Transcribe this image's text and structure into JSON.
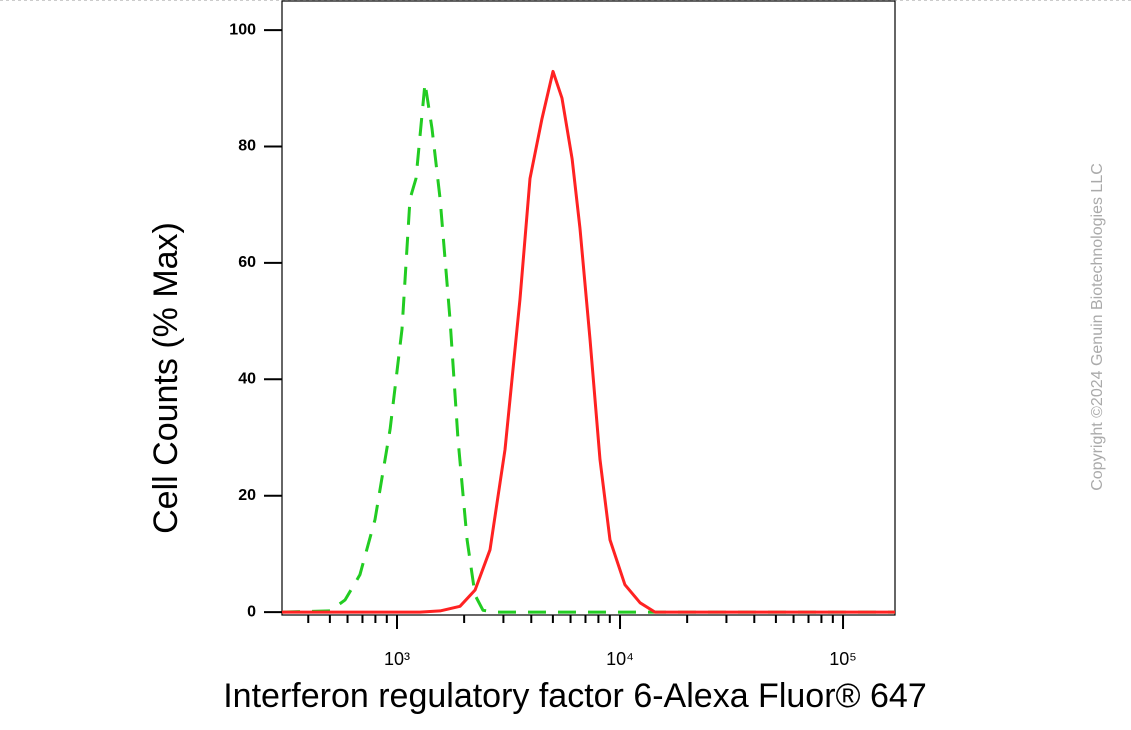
{
  "chart_data": {
    "type": "line",
    "x_label": "Interferon regulatory factor 6-Alexa Fluor® 647",
    "y_label": "Cell Counts (% Max)",
    "annotation": "Copyright ©2024 Genuin Biotechnologies LLC",
    "xscale": "log",
    "xlim": [
      305,
      171000
    ],
    "ylim": [
      -0.5,
      105
    ],
    "xticks": [
      {
        "value": 1000,
        "label": "10³"
      },
      {
        "value": 10000,
        "label": "10⁴"
      },
      {
        "value": 100000,
        "label": "10⁵"
      }
    ],
    "yticks": [
      0,
      20,
      40,
      60,
      80,
      100
    ],
    "series": [
      {
        "color": "#22cc22",
        "dash": true,
        "x": [
          305,
          501,
          585,
          682,
          797,
          931,
          1053,
          1144,
          1217,
          1335,
          1435,
          1560,
          1729,
          1877,
          2061,
          2239,
          2431,
          2750,
          171000
        ],
        "values": [
          0,
          0.2,
          2.1,
          6.4,
          15.9,
          31.4,
          48.6,
          71.0,
          74.5,
          90.9,
          83.1,
          71.0,
          50.3,
          29.7,
          12.4,
          2.9,
          0.3,
          0,
          0
        ]
      },
      {
        "color": "#ff2222",
        "dash": false,
        "x": [
          305,
          1268,
          1560,
          1917,
          2239,
          2612,
          3050,
          3561,
          3948,
          4468,
          5008,
          5495,
          6095,
          6616,
          7336,
          8134,
          9019,
          10520,
          12300,
          14350,
          171000
        ],
        "values": [
          0,
          0,
          0.2,
          1.0,
          3.8,
          10.7,
          27.9,
          53.8,
          74.5,
          84.8,
          92.9,
          88.3,
          77.9,
          65.9,
          46.9,
          26.2,
          12.4,
          4.7,
          1.6,
          0,
          0
        ]
      }
    ]
  }
}
